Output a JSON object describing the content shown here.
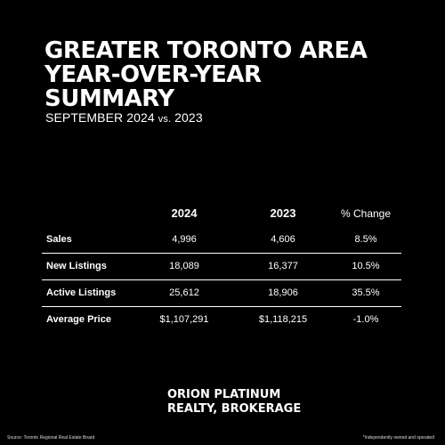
{
  "title": {
    "line1": "GREATER TORONTO AREA",
    "line2": "YEAR-OVER-YEAR",
    "line3": "SUMMARY"
  },
  "subtitle": {
    "period": "SEPTEMBER 2024",
    "vs": "vs.",
    "compare_year": "2023"
  },
  "table": {
    "headers": [
      "",
      "2024",
      "2023",
      "% Change"
    ],
    "rows": [
      {
        "label": "Sales",
        "y2024": "4,996",
        "y2023": "4,606",
        "change": "8.5%"
      },
      {
        "label": "New Listings",
        "y2024": "18,089",
        "y2023": "16,377",
        "change": "10.5%"
      },
      {
        "label": "Active Listings",
        "y2024": "25,612",
        "y2023": "18,906",
        "change": "35.5%"
      },
      {
        "label": "Average Price",
        "y2024": "$1,107,291",
        "y2023": "$1,118,215",
        "change": "-1.0%"
      }
    ]
  },
  "brand": {
    "line1": "ORION PLATINUM",
    "line2": "REALTY, BROKERAGE"
  },
  "footer": {
    "source": "Source: Toronto Regional Real Estate Board",
    "disclaimer": "*Independently owned and operated"
  },
  "colors": {
    "background": "#000000",
    "text": "#ffffff"
  }
}
